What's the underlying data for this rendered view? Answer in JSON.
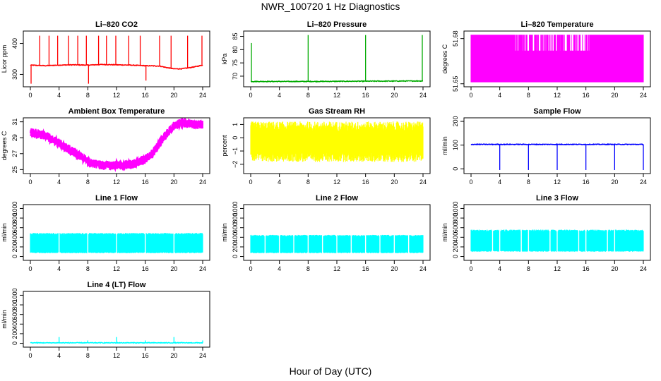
{
  "page": {
    "title": "NWR_100720  1 Hz Diagnostics",
    "xlabel": "Hour of Day (UTC)"
  },
  "x_axis": {
    "min": 0,
    "max": 24,
    "ticks": [
      0,
      4,
      8,
      12,
      16,
      20,
      24
    ]
  },
  "chart_data": [
    {
      "type": "line",
      "title": "Li–820 CO2",
      "ylabel": "Licor ppm",
      "color": "#ff0000",
      "ylim": [
        260,
        440
      ],
      "yticks": [
        300,
        400
      ],
      "ytick_labels": [
        "300",
        "400"
      ],
      "series": [
        {
          "x": [
            0,
            2,
            4,
            6,
            8,
            10,
            12,
            14,
            16,
            18,
            19,
            20,
            21,
            22,
            23,
            24
          ],
          "y": [
            330,
            328,
            330,
            331,
            330,
            332,
            331,
            330,
            328,
            327,
            322,
            318,
            318,
            321,
            325,
            330
          ]
        }
      ],
      "spikes_up": [
        [
          1.3,
          425
        ],
        [
          2.6,
          425
        ],
        [
          3.8,
          425
        ],
        [
          5.3,
          425
        ],
        [
          6.6,
          425
        ],
        [
          7.8,
          425
        ],
        [
          9.5,
          425
        ],
        [
          10.6,
          425
        ],
        [
          11.9,
          425
        ],
        [
          13.7,
          425
        ],
        [
          15.3,
          425
        ],
        [
          18.0,
          425
        ],
        [
          19.6,
          425
        ],
        [
          21.9,
          425
        ],
        [
          23.9,
          425
        ]
      ],
      "spikes_down": [
        [
          0.1,
          270
        ],
        [
          8.1,
          270
        ],
        [
          16.1,
          280
        ]
      ]
    },
    {
      "type": "line",
      "title": "Li–820 Pressure",
      "ylabel": "kPa",
      "color": "#00aa00",
      "ylim": [
        66,
        87
      ],
      "yticks": [
        70,
        75,
        80,
        85
      ],
      "ytick_labels": [
        "70",
        "75",
        "80",
        "85"
      ],
      "series": [
        {
          "x": [
            0,
            8,
            16,
            24
          ],
          "y": [
            68,
            68,
            68.1,
            68.2
          ]
        }
      ],
      "spikes_up": [
        [
          0.1,
          82.5
        ],
        [
          8.0,
          85.5
        ],
        [
          16.0,
          85.5
        ],
        [
          23.9,
          85.5
        ]
      ]
    },
    {
      "type": "band",
      "title": "Li–820 Temperature",
      "ylabel": "degrees C",
      "color": "#ff00ff",
      "ylim": [
        51.648,
        51.685
      ],
      "yticks": [
        51.65,
        51.68
      ],
      "ytick_labels": [
        "51.65",
        "51.68"
      ],
      "band_low": 51.651,
      "band_high": 51.6825,
      "lower_level": 51.672,
      "gap_window": [
        6.0,
        16.5
      ]
    },
    {
      "type": "line",
      "title": "Ambient Box Temperature",
      "ylabel": "degrees C",
      "color": "#ff00ff",
      "ylim": [
        24.5,
        31.5
      ],
      "yticks": [
        25,
        27,
        29,
        31
      ],
      "ytick_labels": [
        "25",
        "27",
        "29",
        "31"
      ],
      "series": [
        {
          "x": [
            0,
            2,
            4,
            6,
            8,
            10,
            12,
            14,
            16,
            17,
            18,
            19,
            20,
            21,
            22,
            23,
            24
          ],
          "y": [
            29.7,
            29.3,
            28.3,
            27.2,
            26.0,
            25.5,
            25.6,
            25.6,
            26.3,
            27.0,
            28.3,
            29.5,
            30.5,
            30.9,
            30.8,
            30.6,
            30.6
          ]
        }
      ],
      "noise": 0.7
    },
    {
      "type": "band",
      "title": "Gas Stream RH",
      "ylabel": "percent",
      "color": "#ffff00",
      "ylim": [
        -2.7,
        1.5
      ],
      "yticks": [
        -2,
        -1,
        0,
        1
      ],
      "ytick_labels": [
        "−2",
        "−1",
        "0",
        "1"
      ],
      "band_low": -2.0,
      "band_high": 0.9,
      "center": -0.3
    },
    {
      "type": "line",
      "title": "Sample Flow",
      "ylabel": "ml/min",
      "color": "#0000ff",
      "ylim": [
        -20,
        215
      ],
      "yticks": [
        0,
        100,
        200
      ],
      "ytick_labels": [
        "0",
        "100",
        "200"
      ],
      "series": [
        {
          "x": [
            0,
            24
          ],
          "y": [
            103,
            103
          ]
        }
      ],
      "spikes_down": [
        [
          4.0,
          -5
        ],
        [
          8.0,
          -5
        ],
        [
          12.0,
          -5
        ],
        [
          16.0,
          -5
        ],
        [
          20.0,
          -5
        ],
        [
          24.0,
          -5
        ]
      ]
    },
    {
      "type": "band",
      "title": "Line 1 Flow",
      "ylabel": "ml/min",
      "color": "#00ffff",
      "ylim": [
        -80,
        1080
      ],
      "yticks": [
        0,
        200,
        400,
        600,
        800,
        1000
      ],
      "ytick_labels": [
        "0",
        "200",
        "400",
        "600",
        "800",
        "1000"
      ],
      "band_low": 70,
      "band_high": 490,
      "gaps": [
        4,
        8,
        12,
        16,
        20
      ]
    },
    {
      "type": "band",
      "title": "Line 2 Flow",
      "ylabel": "ml/min",
      "color": "#00ffff",
      "ylim": [
        -80,
        1080
      ],
      "yticks": [
        0,
        200,
        400,
        600,
        800,
        1000
      ],
      "ytick_labels": [
        "0",
        "200",
        "400",
        "600",
        "800",
        "1000"
      ],
      "band_low": 70,
      "band_high": 450,
      "gaps": [
        2,
        4,
        6,
        8,
        10,
        12,
        14,
        16,
        18,
        20,
        22
      ]
    },
    {
      "type": "band",
      "title": "Line 3 Flow",
      "ylabel": "ml/min",
      "color": "#00ffff",
      "ylim": [
        -80,
        1080
      ],
      "yticks": [
        0,
        200,
        400,
        600,
        800,
        1000
      ],
      "ytick_labels": [
        "0",
        "200",
        "400",
        "600",
        "800",
        "1000"
      ],
      "band_low": 100,
      "band_high": 560,
      "gaps": [
        3,
        4,
        7,
        8,
        11,
        12,
        15,
        16,
        19,
        20
      ]
    },
    {
      "type": "line",
      "title": "Line 4 (LT) Flow",
      "ylabel": "ml/min",
      "color": "#00ffff",
      "ylim": [
        -80,
        1080
      ],
      "yticks": [
        0,
        200,
        400,
        600,
        800,
        1000
      ],
      "ytick_labels": [
        "0",
        "200",
        "400",
        "600",
        "800",
        "1000"
      ],
      "series": [
        {
          "x": [
            0,
            24
          ],
          "y": [
            10,
            10
          ]
        }
      ],
      "spikes_up": [
        [
          4.0,
          130
        ],
        [
          8.0,
          60
        ],
        [
          12.0,
          130
        ],
        [
          16.0,
          60
        ],
        [
          20.0,
          130
        ],
        [
          24.0,
          60
        ]
      ]
    }
  ]
}
